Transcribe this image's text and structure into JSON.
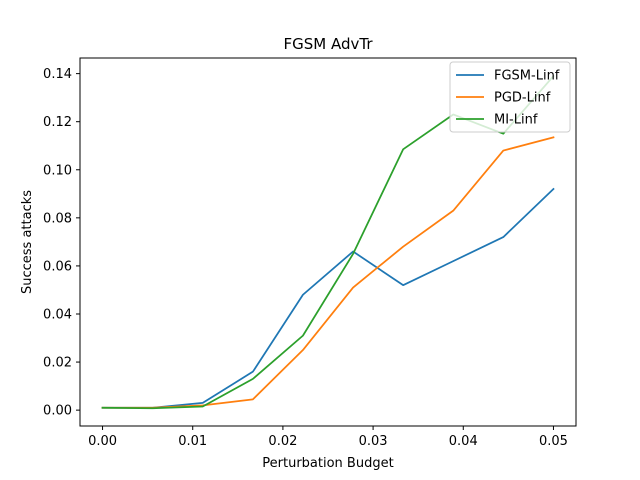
{
  "chart_data": {
    "type": "line",
    "title": "FGSM AdvTr",
    "xlabel": "Perturbation Budget",
    "ylabel": "Success attacks",
    "x": [
      0.0,
      0.00556,
      0.01111,
      0.01667,
      0.02222,
      0.02778,
      0.03333,
      0.03889,
      0.04444,
      0.05
    ],
    "xlim": [
      -0.0025,
      0.0525
    ],
    "ylim": [
      -0.0066,
      0.1465
    ],
    "x_ticks": [
      0.0,
      0.01,
      0.02,
      0.03,
      0.04,
      0.05
    ],
    "x_tick_labels": [
      "0.00",
      "0.01",
      "0.02",
      "0.03",
      "0.04",
      "0.05"
    ],
    "y_ticks": [
      0.0,
      0.02,
      0.04,
      0.06,
      0.08,
      0.1,
      0.12,
      0.14
    ],
    "y_tick_labels": [
      "0.00",
      "0.02",
      "0.04",
      "0.06",
      "0.08",
      "0.10",
      "0.12",
      "0.14"
    ],
    "grid": false,
    "legend_position": "top-right",
    "series": [
      {
        "name": "FGSM-Linf",
        "color": "#1f77b4",
        "values": [
          0.001,
          0.001,
          0.003,
          0.016,
          0.048,
          0.066,
          0.052,
          0.062,
          0.072,
          0.092
        ]
      },
      {
        "name": "PGD-Linf",
        "color": "#ff7f0e",
        "values": [
          0.001,
          0.001,
          0.002,
          0.0045,
          0.025,
          0.051,
          0.068,
          0.083,
          0.108,
          0.1135
        ]
      },
      {
        "name": "MI-Linf",
        "color": "#2ca02c",
        "values": [
          0.001,
          0.0008,
          0.0015,
          0.013,
          0.031,
          0.065,
          0.1085,
          0.123,
          0.115,
          0.139
        ]
      }
    ]
  }
}
